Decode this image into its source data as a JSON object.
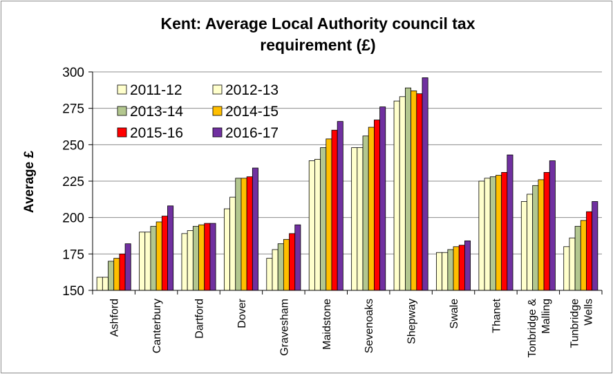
{
  "chart_data": {
    "type": "bar",
    "title_lines": [
      "Kent: Average Local Authority  council tax",
      "requirement (£)"
    ],
    "xlabel": "",
    "ylabel": "Average £",
    "ylim": [
      150,
      300
    ],
    "yticks": [
      150,
      175,
      200,
      225,
      250,
      275,
      300
    ],
    "grid": true,
    "legend_placement": "top-left",
    "categories": [
      [
        "Ashford"
      ],
      [
        "Canterbury"
      ],
      [
        "Dartford"
      ],
      [
        "Dover"
      ],
      [
        "Gravesham"
      ],
      [
        "Maidstone"
      ],
      [
        "Sevenoaks"
      ],
      [
        "Shepway"
      ],
      [
        "Swale"
      ],
      [
        "Thanet"
      ],
      [
        "Tonbridge &",
        "Malling"
      ],
      [
        "Tunbridge",
        "Wells"
      ]
    ],
    "series": [
      {
        "name": "2011-12",
        "color": "#ffffcc",
        "values": [
          159,
          190,
          189,
          206,
          172,
          239,
          248,
          280,
          176,
          225,
          211,
          180
        ]
      },
      {
        "name": "2012-13",
        "color": "#ffffcc",
        "values": [
          159,
          190,
          191,
          214,
          178,
          240,
          248,
          283,
          176,
          227,
          216,
          186
        ]
      },
      {
        "name": "2013-14",
        "color": "#b3c78f",
        "values": [
          170,
          194,
          194,
          227,
          182,
          248,
          256,
          289,
          178,
          228,
          222,
          194
        ]
      },
      {
        "name": "2014-15",
        "color": "#ffbf00",
        "values": [
          172,
          197,
          195,
          227,
          185,
          254,
          262,
          287,
          180,
          229,
          226,
          198
        ]
      },
      {
        "name": "2015-16",
        "color": "#ff0000",
        "values": [
          175,
          201,
          196,
          228,
          189,
          260,
          267,
          285,
          181,
          231,
          231,
          204
        ]
      },
      {
        "name": "2016-17",
        "color": "#7030a0",
        "values": [
          182,
          208,
          196,
          234,
          195,
          266,
          276,
          296,
          184,
          243,
          239,
          211
        ]
      }
    ]
  }
}
